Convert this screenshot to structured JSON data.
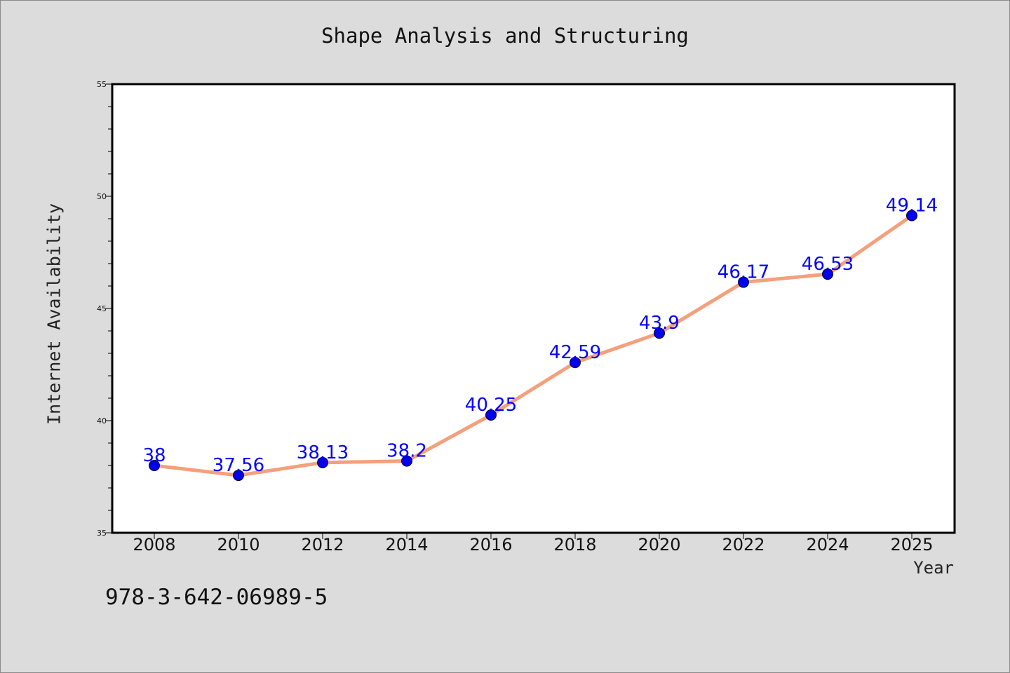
{
  "chart_data": {
    "type": "line",
    "title": "Shape Analysis and Structuring",
    "xlabel": "Year",
    "ylabel": "Internet Availability",
    "categories": [
      "2008",
      "2010",
      "2012",
      "2014",
      "2016",
      "2018",
      "2020",
      "2022",
      "2024",
      "2025"
    ],
    "series": [
      {
        "values": [
          38,
          37.56,
          38.13,
          38.2,
          40.25,
          42.59,
          43.9,
          46.17,
          46.53,
          49.14
        ],
        "labels": [
          "38",
          "37.56",
          "38.13",
          "38.2",
          "40.25",
          "42.59",
          "43.9",
          "46.17",
          "46.53",
          "49.14"
        ]
      }
    ],
    "ylim": [
      35,
      55
    ],
    "yticks": [
      35,
      40,
      45,
      50,
      55
    ],
    "grid": false,
    "colors": {
      "line": "#f4a07c",
      "marker": "#0000ee",
      "label": "#0000ff",
      "background": "#dcdcdc",
      "plot_background": "#ffffff"
    }
  },
  "footer": {
    "isbn": "978-3-642-06989-5"
  }
}
